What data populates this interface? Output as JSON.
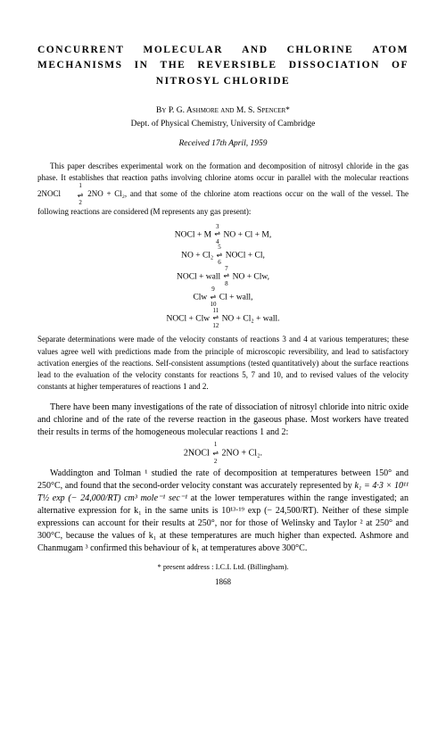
{
  "title": {
    "line1_words": [
      "CONCURRENT",
      "MOLECULAR",
      "AND",
      "CHLORINE",
      "ATOM"
    ],
    "line2_words": [
      "MECHANISMS",
      "IN",
      "THE",
      "REVERSIBLE",
      "DISSOCIATION",
      "OF"
    ],
    "line3": "NITROSYL CHLORIDE"
  },
  "byline": "By P. G. Ashmore and M. S. Spencer*",
  "dept": "Dept. of Physical Chemistry, University of Cambridge",
  "received": "Received 17th April, 1959",
  "abstract": {
    "p1": "This paper describes experimental work on the formation and decomposition of nitrosyl chloride in the gas phase. It establishes that reaction paths involving chlorine atoms occur in parallel with the molecular reactions 2NOCl",
    "p1b": "2NO + Cl₂, and that some of the chlorine atom reactions occur on the wall of the vessel. The following reactions are considered (M represents any gas present):",
    "eq1_top": "1",
    "eq1_bot": "2",
    "eq3": "NOCl + M",
    "eq3arr_top": "3",
    "eq3arr_bot": "4",
    "eq3r": "NO + Cl + M,",
    "eq5": "NO + Cl₂",
    "eq5arr_top": "5",
    "eq5arr_bot": "6",
    "eq5r": "NOCl + Cl,",
    "eq7": "NOCl + wall",
    "eq7arr_top": "7",
    "eq7arr_bot": "8",
    "eq7r": "NO + Clw,",
    "eq9": "Clw",
    "eq9arr_top": "9",
    "eq9arr_bot": "10",
    "eq9r": "Cl + wall,",
    "eq11": "NOCl + Clw",
    "eq11arr_top": "11",
    "eq11arr_bot": "12",
    "eq11r": "NO + Cl₂ + wall.",
    "p2": "Separate determinations were made of the velocity constants of reactions 3 and 4 at various temperatures; these values agree well with predictions made from the principle of microscopic reversibility, and lead to satisfactory activation energies of the reactions. Self-consistent assumptions (tested quantitatively) about the surface reactions lead to the evaluation of the velocity constants for reactions 5, 7 and 10, and to revised values of the velocity constants at higher temperatures of reactions 1 and 2."
  },
  "body": {
    "p1": "There have been many investigations of the rate of dissociation of nitrosyl chloride into nitric oxide and chlorine and of the rate of the reverse reaction in the gaseous phase. Most workers have treated their results in terms of the homogeneous molecular reactions 1 and 2:",
    "eq_mid_l": "2NOCl",
    "eq_mid_top": "1",
    "eq_mid_bot": "2",
    "eq_mid_r": "2NO + Cl₂.",
    "p2a": "Waddington and Tolman ¹ studied the rate of decomposition at temperatures between 150° and 250°C, and found that the second-order velocity constant was accurately represented by ",
    "p2_k1": "k₁ = 4·3 × 10¹¹ T½ exp (− 24,000/RT) cm³ mole⁻¹ sec⁻¹",
    "p2b": " at the lower temperatures within the range investigated; an alternative expression for k₁ in the same units is 10¹³·¹⁹ exp (− 24,500/RT). Neither of these simple expressions can account for their results at 250°, nor for those of Welinsky and Taylor ² at 250° and 300°C, because the values of k₁ at these temperatures are much higher than expected. Ashmore and Chanmugam ³ confirmed this behaviour of k₁ at temperatures above 300°C."
  },
  "footnote": "* present address : I.C.I. Ltd. (Billingham).",
  "page_num": "1868",
  "colors": {
    "background": "#ffffff",
    "text": "#000000"
  }
}
